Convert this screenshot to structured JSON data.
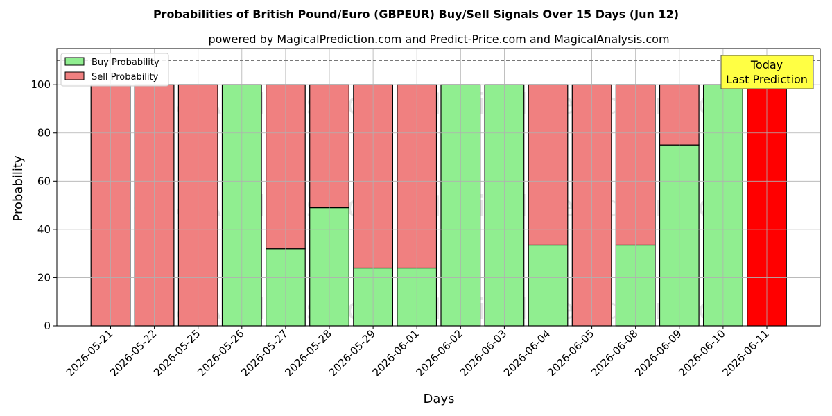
{
  "chart_data": {
    "type": "bar",
    "stacked": true,
    "title": "Probabilities of British Pound/Euro (GBPEUR) Buy/Sell Signals Over 15 Days (Jun 12)",
    "subtitle": "powered by MagicalPrediction.com and Predict-Price.com and MagicalAnalysis.com",
    "xlabel": "Days",
    "ylabel": "Probability",
    "ylim": [
      0,
      115
    ],
    "yticks": [
      0,
      20,
      40,
      60,
      80,
      100
    ],
    "grid": true,
    "legend_placement": "top-left",
    "reference_line": 110,
    "categories": [
      "2026-05-21",
      "2026-05-22",
      "2026-05-25",
      "2026-05-26",
      "2026-05-27",
      "2026-05-28",
      "2026-05-29",
      "2026-06-01",
      "2026-06-02",
      "2026-06-03",
      "2026-06-04",
      "2026-06-05",
      "2026-06-08",
      "2026-06-09",
      "2026-06-10",
      "2026-06-11"
    ],
    "series": [
      {
        "name": "Buy Probability",
        "color": "#90ee90",
        "values": [
          0,
          0,
          0,
          100,
          32,
          49,
          24,
          24,
          100,
          100,
          33.5,
          0,
          33.5,
          75,
          100,
          0
        ]
      },
      {
        "name": "Sell Probability",
        "color": "#f08080",
        "values": [
          100,
          100,
          100,
          0,
          68,
          51,
          76,
          76,
          0,
          0,
          66.5,
          100,
          66.5,
          25,
          0,
          100
        ]
      }
    ],
    "highlight": {
      "index": 15,
      "color": "#ff0000"
    },
    "annotation": {
      "lines": [
        "Today",
        "Last Prediction"
      ],
      "bg": "#ffff44"
    },
    "watermarks": [
      "MagicalAnalysis.com",
      "MagicalPrediction.com"
    ]
  }
}
